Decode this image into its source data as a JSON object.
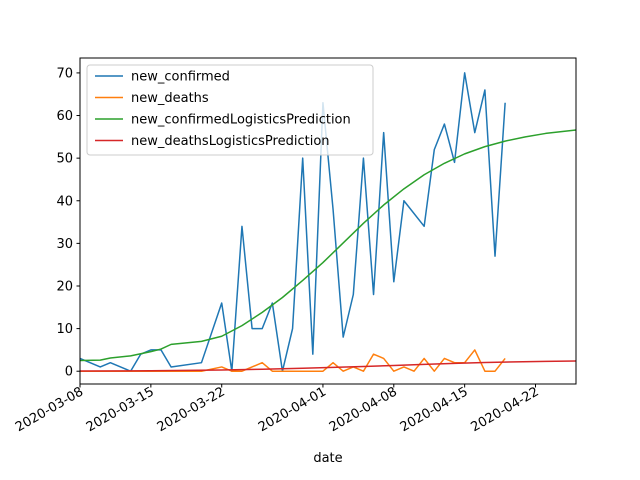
{
  "chart_data": {
    "type": "line",
    "title": "",
    "xlabel": "date",
    "ylabel": "",
    "x_type": "date",
    "xlim": [
      "2020-03-08",
      "2020-04-26"
    ],
    "ylim": [
      -3,
      73.5
    ],
    "x_ticks": [
      "2020-03-08",
      "2020-03-15",
      "2020-03-22",
      "2020-04-01",
      "2020-04-08",
      "2020-04-15",
      "2020-04-22"
    ],
    "y_ticks": [
      0,
      10,
      20,
      30,
      40,
      50,
      60,
      70
    ],
    "grid": false,
    "legend_position": "top-left",
    "series": [
      {
        "name": "new_confirmed",
        "color": "#1f77b4",
        "points": [
          [
            "2020-03-08",
            3
          ],
          [
            "2020-03-09",
            2
          ],
          [
            "2020-03-10",
            1
          ],
          [
            "2020-03-11",
            2
          ],
          [
            "2020-03-13",
            0
          ],
          [
            "2020-03-14",
            4
          ],
          [
            "2020-03-15",
            5
          ],
          [
            "2020-03-16",
            5
          ],
          [
            "2020-03-17",
            1
          ],
          [
            "2020-03-20",
            2
          ],
          [
            "2020-03-22",
            16
          ],
          [
            "2020-03-23",
            0
          ],
          [
            "2020-03-24",
            34
          ],
          [
            "2020-03-25",
            10
          ],
          [
            "2020-03-26",
            10
          ],
          [
            "2020-03-27",
            16
          ],
          [
            "2020-03-28",
            0
          ],
          [
            "2020-03-29",
            10
          ],
          [
            "2020-03-30",
            50
          ],
          [
            "2020-03-31",
            4
          ],
          [
            "2020-04-01",
            63
          ],
          [
            "2020-04-02",
            38
          ],
          [
            "2020-04-03",
            8
          ],
          [
            "2020-04-04",
            18
          ],
          [
            "2020-04-05",
            50
          ],
          [
            "2020-04-06",
            18
          ],
          [
            "2020-04-07",
            56
          ],
          [
            "2020-04-08",
            21
          ],
          [
            "2020-04-09",
            40
          ],
          [
            "2020-04-11",
            34
          ],
          [
            "2020-04-12",
            52
          ],
          [
            "2020-04-13",
            58
          ],
          [
            "2020-04-14",
            49
          ],
          [
            "2020-04-15",
            70
          ],
          [
            "2020-04-16",
            56
          ],
          [
            "2020-04-17",
            66
          ],
          [
            "2020-04-18",
            27
          ],
          [
            "2020-04-19",
            63
          ]
        ]
      },
      {
        "name": "new_deaths",
        "color": "#ff7f0e",
        "points": [
          [
            "2020-03-08",
            0
          ],
          [
            "2020-03-20",
            0
          ],
          [
            "2020-03-22",
            1
          ],
          [
            "2020-03-23",
            0
          ],
          [
            "2020-03-24",
            0
          ],
          [
            "2020-03-26",
            2
          ],
          [
            "2020-03-27",
            0
          ],
          [
            "2020-04-01",
            0
          ],
          [
            "2020-04-02",
            2
          ],
          [
            "2020-04-03",
            0
          ],
          [
            "2020-04-04",
            1
          ],
          [
            "2020-04-05",
            0
          ],
          [
            "2020-04-06",
            4
          ],
          [
            "2020-04-07",
            3
          ],
          [
            "2020-04-08",
            0
          ],
          [
            "2020-04-09",
            1
          ],
          [
            "2020-04-10",
            0
          ],
          [
            "2020-04-11",
            3
          ],
          [
            "2020-04-12",
            0
          ],
          [
            "2020-04-13",
            3
          ],
          [
            "2020-04-14",
            2
          ],
          [
            "2020-04-15",
            2
          ],
          [
            "2020-04-16",
            5
          ],
          [
            "2020-04-17",
            0
          ],
          [
            "2020-04-18",
            0
          ],
          [
            "2020-04-19",
            3
          ]
        ]
      },
      {
        "name": "new_confirmedLogisticsPrediction",
        "color": "#2ca02c",
        "points": [
          [
            "2020-03-08",
            2.5
          ],
          [
            "2020-03-10",
            2.6
          ],
          [
            "2020-03-11",
            3.1
          ],
          [
            "2020-03-13",
            3.6
          ],
          [
            "2020-03-14",
            4.1
          ],
          [
            "2020-03-15",
            4.6
          ],
          [
            "2020-03-16",
            5.2
          ],
          [
            "2020-03-17",
            6.3
          ],
          [
            "2020-03-20",
            7.0
          ],
          [
            "2020-03-22",
            8.2
          ],
          [
            "2020-03-24",
            10.7
          ],
          [
            "2020-03-26",
            13.8
          ],
          [
            "2020-03-28",
            17.3
          ],
          [
            "2020-03-30",
            21.3
          ],
          [
            "2020-04-01",
            25.5
          ],
          [
            "2020-04-03",
            30.1
          ],
          [
            "2020-04-05",
            34.7
          ],
          [
            "2020-04-07",
            39.0
          ],
          [
            "2020-04-09",
            42.8
          ],
          [
            "2020-04-11",
            46.1
          ],
          [
            "2020-04-13",
            48.8
          ],
          [
            "2020-04-15",
            51.0
          ],
          [
            "2020-04-17",
            52.7
          ],
          [
            "2020-04-19",
            54.0
          ],
          [
            "2020-04-21",
            55.0
          ],
          [
            "2020-04-23",
            55.8
          ],
          [
            "2020-04-26",
            56.6
          ]
        ]
      },
      {
        "name": "new_deathsLogisticsPrediction",
        "color": "#d62728",
        "points": [
          [
            "2020-03-08",
            0.05
          ],
          [
            "2020-03-15",
            0.1
          ],
          [
            "2020-03-22",
            0.3
          ],
          [
            "2020-03-26",
            0.45
          ],
          [
            "2020-03-30",
            0.7
          ],
          [
            "2020-04-02",
            0.9
          ],
          [
            "2020-04-05",
            1.1
          ],
          [
            "2020-04-08",
            1.35
          ],
          [
            "2020-04-11",
            1.6
          ],
          [
            "2020-04-14",
            1.85
          ],
          [
            "2020-04-17",
            2.05
          ],
          [
            "2020-04-20",
            2.2
          ],
          [
            "2020-04-23",
            2.3
          ],
          [
            "2020-04-26",
            2.4
          ]
        ]
      }
    ]
  }
}
